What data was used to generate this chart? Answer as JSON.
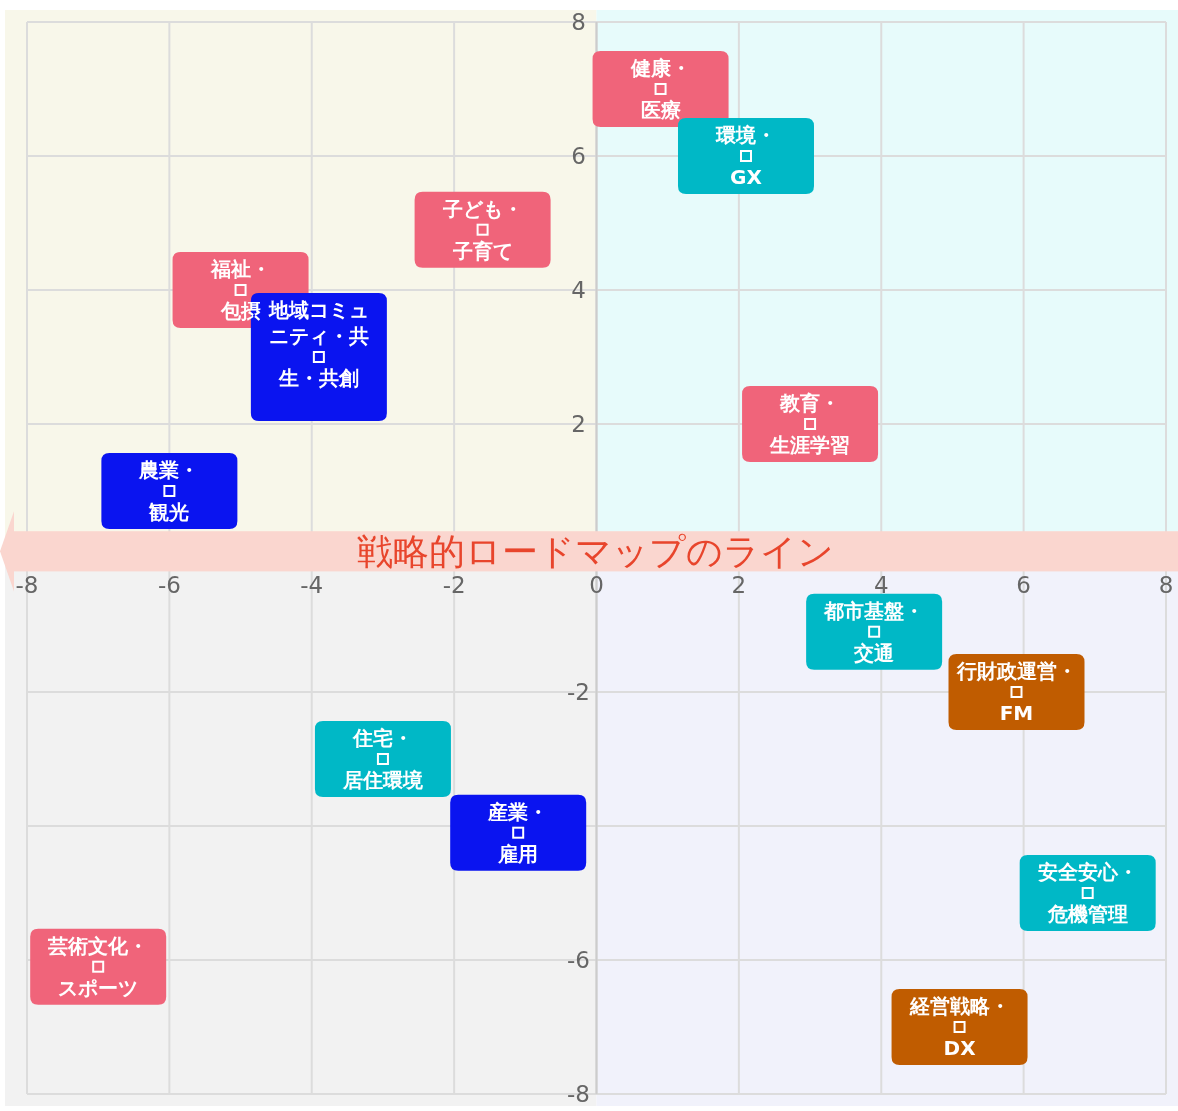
{
  "chart_data": {
    "type": "scatter",
    "xlim": [
      -8,
      8
    ],
    "ylim": [
      -8,
      8
    ],
    "xticks": [
      -8,
      -6,
      -4,
      -2,
      0,
      2,
      4,
      6,
      8
    ],
    "yticks": [
      -8,
      -6,
      {
        "value": -4,
        "label": null
      },
      -2,
      2,
      4,
      6,
      8
    ],
    "grid": true,
    "marker": "square",
    "bands": [
      {
        "axis": "y",
        "from": -0.2,
        "to": 0.4,
        "label": "戦略的ロードマップのライン",
        "color": "#fad6cf"
      }
    ],
    "series": [
      {
        "color": "#f0647a",
        "x": [
          0.9,
          -1.6,
          -5,
          3,
          -7
        ],
        "values": [
          7,
          4.9,
          4,
          2,
          -6.1
        ],
        "value_labels": [
          "健康・医療",
          "子ども・子育て",
          "福祉・包摂",
          "教育・生涯学習",
          "芸術文化・スポーツ"
        ]
      },
      {
        "color": "#00b8c6",
        "x": [
          2.1,
          3.9,
          -3,
          6.9
        ],
        "values": [
          6,
          -1.1,
          -3,
          -5
        ],
        "value_labels": [
          "環境・GX",
          "都市基盤・交通",
          "住宅・居住環境",
          "安全安心・危機管理"
        ]
      },
      {
        "color": "#0a14f0",
        "x": [
          -3.9,
          -6,
          -1.1
        ],
        "values": [
          3,
          1,
          -4.1
        ],
        "value_labels": [
          "地域コミュニティ・共生・共創",
          "農業・観光",
          "産業・雇用"
        ]
      },
      {
        "color": "#c05c00",
        "x": [
          5.9,
          5.1
        ],
        "values": [
          -2,
          -7
        ],
        "value_labels": [
          "行財政運営・FM",
          "経営戦略・DX"
        ]
      }
    ]
  }
}
